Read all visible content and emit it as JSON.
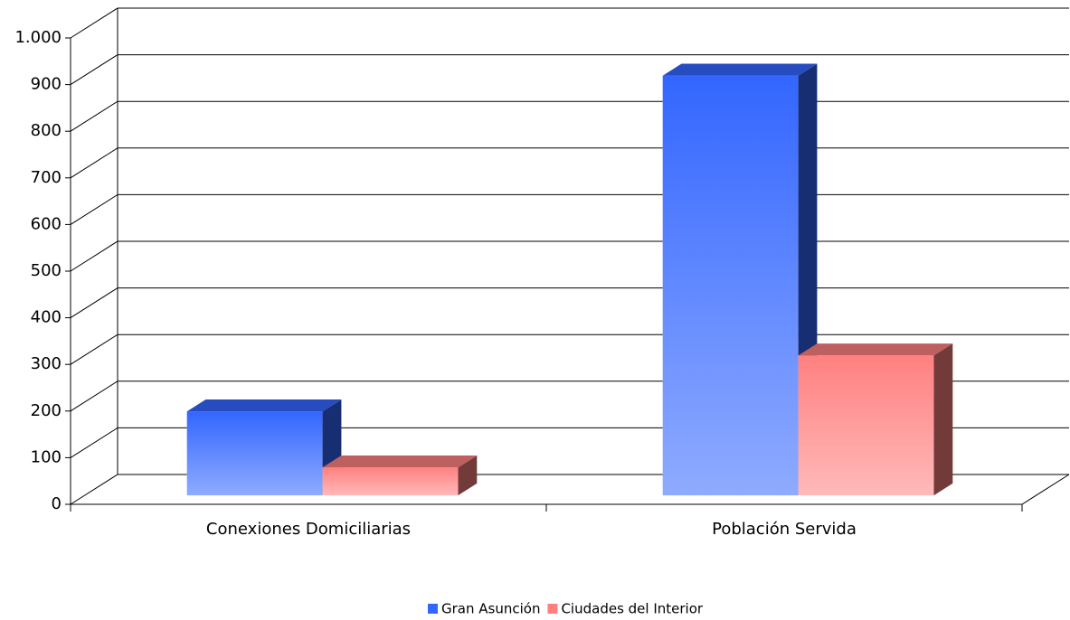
{
  "chart_data": {
    "type": "bar3d",
    "categories": [
      "Conexiones Domiciliarias",
      "Población Servida"
    ],
    "series": [
      {
        "name": "Gran Asunción",
        "color": "#3366ff",
        "values": [
          180,
          900
        ]
      },
      {
        "name": "Ciudades del Interior",
        "color": "#ff8080",
        "values": [
          60,
          300
        ]
      }
    ],
    "ylim": [
      0,
      1000
    ],
    "yticks": [
      0,
      100,
      200,
      300,
      400,
      500,
      600,
      700,
      800,
      900,
      {
        "value": 1000,
        "label": "1.000"
      }
    ],
    "grid": true,
    "legend": "bottom"
  }
}
